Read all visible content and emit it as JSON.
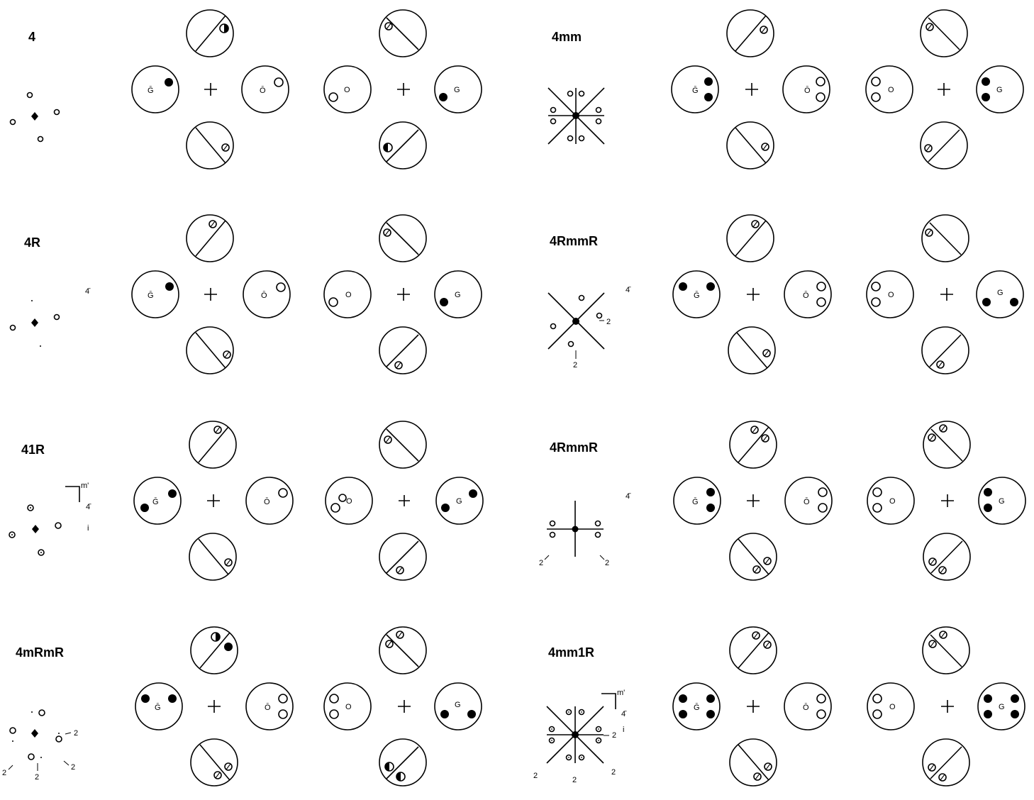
{
  "title": "",
  "label_texts": {
    "G_bar": "Ḡ",
    "O_bar": "Ō",
    "O": "O",
    "G": "G",
    "two": "2",
    "four_bar": "4̄",
    "m_prime": "m'",
    "i": "i"
  },
  "panels": [
    {
      "id": "p-4",
      "label": "4",
      "col": 0,
      "row": 0
    },
    {
      "id": "p-4mm",
      "label": "4mm",
      "col": 1,
      "row": 0
    },
    {
      "id": "p-4R",
      "label": "4R",
      "col": 0,
      "row": 1
    },
    {
      "id": "p-4RmmR-a",
      "label": "4RmmR",
      "col": 1,
      "row": 1
    },
    {
      "id": "p-41R",
      "label": "41R",
      "col": 0,
      "row": 2
    },
    {
      "id": "p-4RmmR-b",
      "label": "4RmmR",
      "col": 1,
      "row": 2
    },
    {
      "id": "p-4mRmR",
      "label": "4mRmR",
      "col": 0,
      "row": 3
    },
    {
      "id": "p-4mm1R",
      "label": "4mm1R",
      "col": 1,
      "row": 3
    }
  ]
}
